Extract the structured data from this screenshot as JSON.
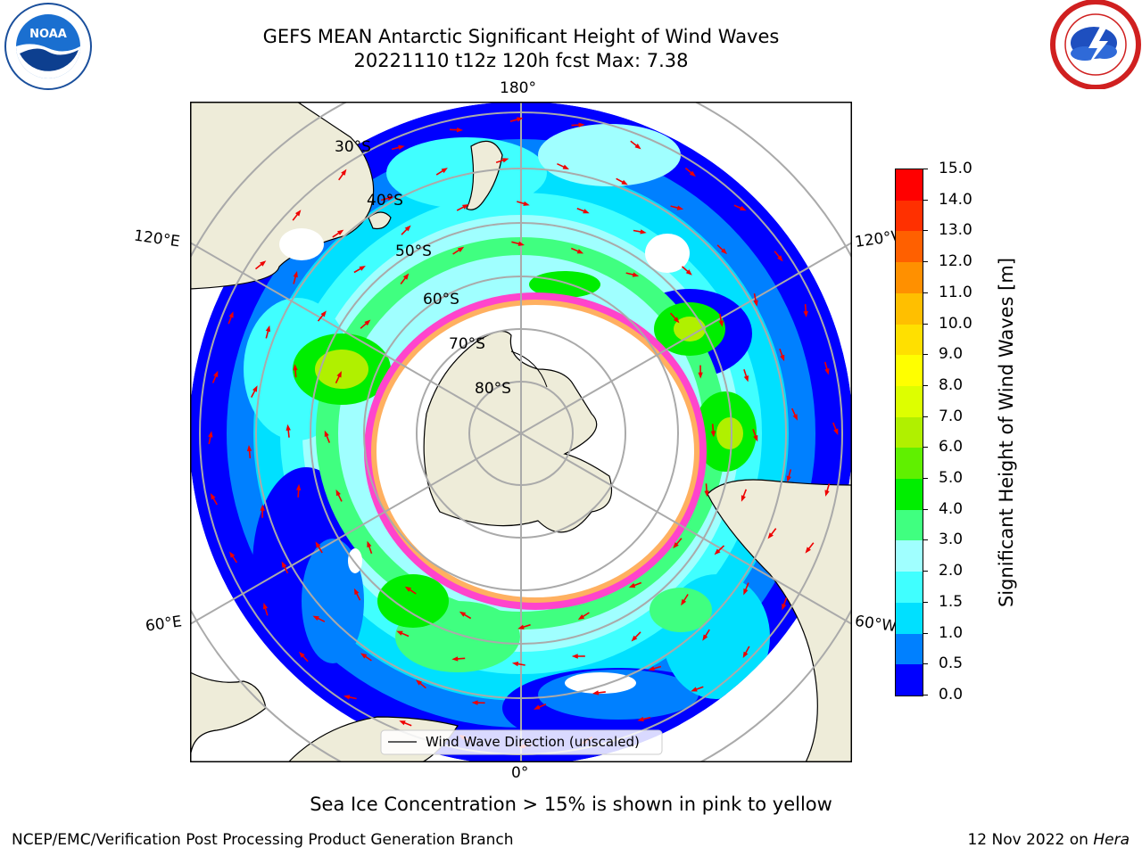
{
  "header": {
    "title_line1": "GEFS MEAN Antarctic Significant Height of Wind Waves",
    "title_line2": "20221110 t12z 120h fcst   Max: 7.38"
  },
  "logos": {
    "left": "noara-logo",
    "left_text": "NOAA",
    "right": "national-weather-service-logo",
    "right_text": "NATIONAL WEATHER SERVICE"
  },
  "map": {
    "projection": "south-polar-stereographic",
    "longitude_labels": {
      "top": "180°",
      "bottom": "0°",
      "upper_left": "120°E",
      "upper_right": "120°W",
      "lower_left": "60°E",
      "lower_right": "60°W"
    },
    "latitude_labels": [
      "30°S",
      "40°S",
      "50°S",
      "60°S",
      "70°S",
      "80°S"
    ],
    "legend_label": "Wind Wave Direction (unscaled)",
    "colors": {
      "land": "#eeecd9",
      "sea_ice_center": "#ffffff",
      "ice_edge": "#ff44cc",
      "arrow": "#ee0000"
    }
  },
  "colorbar": {
    "label": "Significant Height of Wind Waves [m]",
    "ticks": [
      "0.0",
      "0.5",
      "1.0",
      "1.5",
      "2.0",
      "3.0",
      "4.0",
      "5.0",
      "6.0",
      "7.0",
      "8.0",
      "9.0",
      "10.0",
      "11.0",
      "12.0",
      "13.0",
      "14.0",
      "15.0"
    ],
    "colors": [
      "#0000ff",
      "#0080ff",
      "#00e0ff",
      "#40ffff",
      "#a0ffff",
      "#40ff80",
      "#00ee00",
      "#60f000",
      "#b0f000",
      "#ddff00",
      "#ffff00",
      "#ffe000",
      "#ffbf00",
      "#ff9000",
      "#ff6000",
      "#ff3000",
      "#ff0000"
    ]
  },
  "captions": {
    "sea_ice_note": "Sea Ice Concentration > 15% is shown in pink to yellow",
    "producer": "NCEP/EMC/Verification Post Processing Product Generation Branch",
    "date_prefix": "12 Nov 2022 on ",
    "date_host": "Hera"
  }
}
